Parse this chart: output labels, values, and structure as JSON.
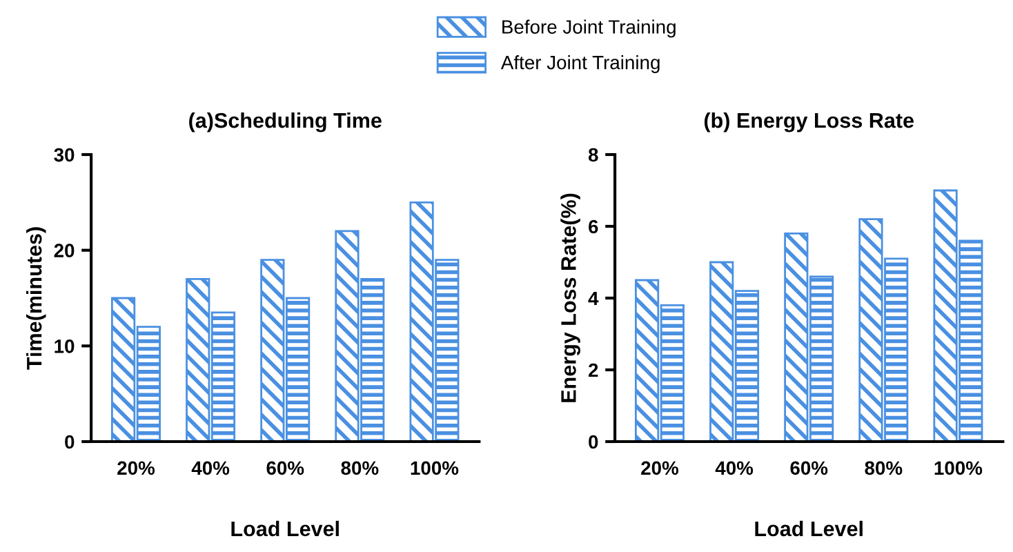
{
  "chart_data": [
    {
      "type": "bar",
      "title": "(a)Scheduling Time",
      "xlabel": "Load Level",
      "ylabel": "Time(minutes)",
      "categories": [
        "20%",
        "40%",
        "60%",
        "80%",
        "100%"
      ],
      "series": [
        {
          "name": "Before Joint Training",
          "color": "#4a90e2",
          "values": [
            15,
            17,
            19,
            22,
            25
          ]
        },
        {
          "name": "After Joint Training",
          "color": "#4a90e2",
          "values": [
            12,
            13.5,
            15,
            17,
            19
          ]
        }
      ],
      "ylim": [
        0,
        30
      ],
      "yticks": [
        0,
        10,
        20,
        30
      ],
      "grid": false,
      "legend": "top"
    },
    {
      "type": "bar",
      "title": "(b) Energy Loss Rate",
      "xlabel": "Load Level",
      "ylabel": "Energy Loss Rate(%)",
      "categories": [
        "20%",
        "40%",
        "60%",
        "80%",
        "100%"
      ],
      "series": [
        {
          "name": "Before Joint Training",
          "color": "#4a90e2",
          "values": [
            4.5,
            5,
            5.8,
            6.2,
            7
          ]
        },
        {
          "name": "After Joint Training",
          "color": "#4a90e2",
          "values": [
            3.8,
            4.2,
            4.6,
            5.1,
            5.6
          ]
        }
      ],
      "ylim": [
        0,
        8
      ],
      "yticks": [
        0,
        2,
        4,
        6,
        8
      ],
      "grid": false,
      "legend": "top"
    }
  ]
}
